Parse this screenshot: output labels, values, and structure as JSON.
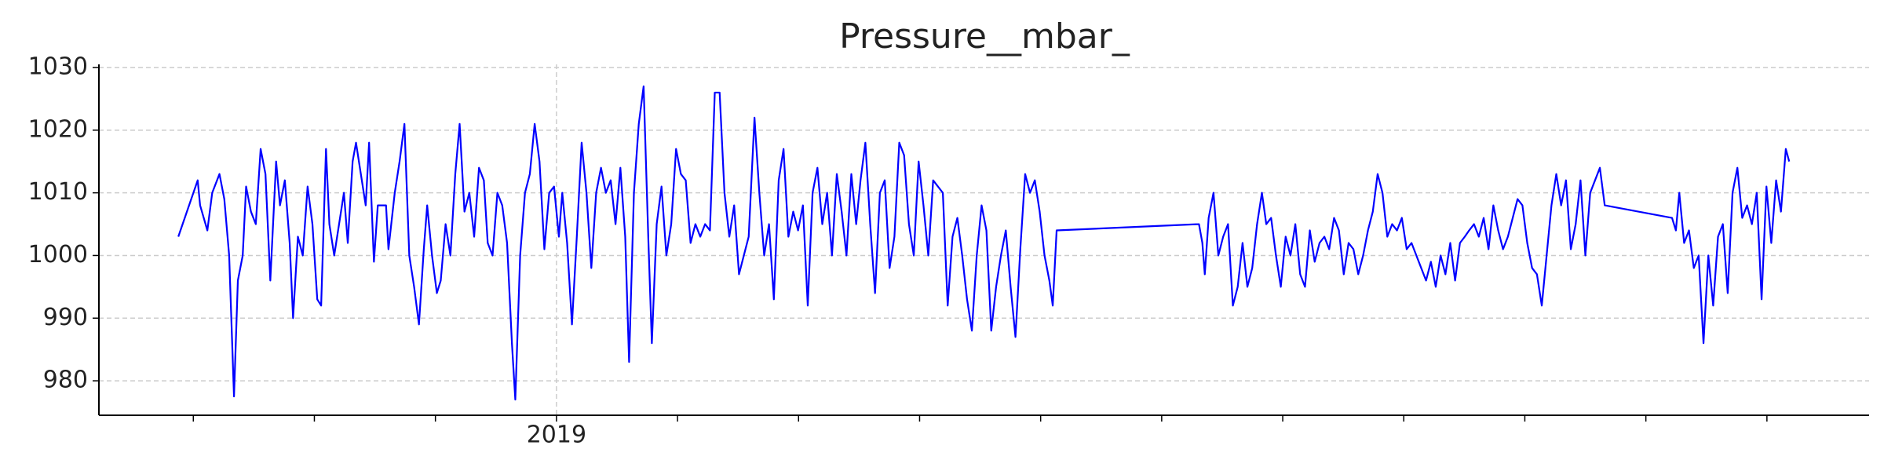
{
  "chart_data": {
    "type": "line",
    "title": "Pressure__mbar_",
    "color": "#0000ff",
    "grid": true,
    "xlim": [
      2018.055,
      2021.711
    ],
    "ylim": [
      974.5,
      1030.5
    ],
    "yticks": [
      980,
      990,
      1000,
      1010,
      1020,
      1030
    ],
    "xticks": [
      {
        "value": 2018.25,
        "label": null
      },
      {
        "value": 2018.5,
        "label": null
      },
      {
        "value": 2018.75,
        "label": null
      },
      2019,
      {
        "value": 2019.25,
        "label": null
      },
      {
        "value": 2019.5,
        "label": null
      },
      {
        "value": 2019.75,
        "label": null
      },
      {
        "value": 2020,
        "label": null
      },
      {
        "value": 2020.25,
        "label": null
      },
      {
        "value": 2020.5,
        "label": null
      },
      {
        "value": 2020.75,
        "label": null
      },
      {
        "value": 2021,
        "label": null
      },
      {
        "value": 2021.25,
        "label": null
      },
      {
        "value": 2021.5,
        "label": null
      }
    ],
    "x": [
      2018.219,
      2018.259,
      2018.264,
      2018.279,
      2018.289,
      2018.304,
      2018.314,
      2018.324,
      2018.334,
      2018.342,
      2018.352,
      2018.359,
      2018.369,
      2018.379,
      2018.389,
      2018.399,
      2018.409,
      2018.421,
      2018.429,
      2018.439,
      2018.449,
      2018.456,
      2018.466,
      2018.476,
      2018.486,
      2018.496,
      2018.506,
      2018.514,
      2018.524,
      2018.531,
      2018.541,
      2018.551,
      2018.561,
      2018.569,
      2018.579,
      2018.586,
      2018.596,
      2018.606,
      2018.613,
      2018.623,
      2018.631,
      2018.648,
      2018.653,
      2018.666,
      2018.676,
      2018.686,
      2018.696,
      2018.706,
      2018.716,
      2018.726,
      2018.733,
      2018.743,
      2018.753,
      2018.761,
      2018.771,
      2018.781,
      2018.791,
      2018.8,
      2018.81,
      2018.82,
      2018.83,
      2018.84,
      2018.85,
      2018.858,
      2018.868,
      2018.878,
      2018.888,
      2018.898,
      2018.908,
      2018.915,
      2018.925,
      2018.935,
      2018.945,
      2018.955,
      2018.965,
      2018.975,
      2018.985,
      2018.995,
      2019.005,
      2019.012,
      2019.022,
      2019.032,
      2019.042,
      2019.052,
      2019.062,
      2019.072,
      2019.082,
      2019.092,
      2019.102,
      2019.112,
      2019.122,
      2019.132,
      2019.142,
      2019.15,
      2019.16,
      2019.17,
      2019.18,
      2019.19,
      2019.197,
      2019.207,
      2019.217,
      2019.227,
      2019.237,
      2019.247,
      2019.257,
      2019.267,
      2019.277,
      2019.287,
      2019.297,
      2019.307,
      2019.317,
      2019.327,
      2019.337,
      2019.347,
      2019.357,
      2019.367,
      2019.377,
      2019.387,
      2019.397,
      2019.409,
      2019.419,
      2019.429,
      2019.439,
      2019.449,
      2019.459,
      2019.469,
      2019.479,
      2019.489,
      2019.499,
      2019.509,
      2019.519,
      2019.529,
      2019.539,
      2019.549,
      2019.559,
      2019.569,
      2019.579,
      2019.589,
      2019.599,
      2019.609,
      2019.619,
      2019.628,
      2019.638,
      2019.648,
      2019.658,
      2019.668,
      2019.678,
      2019.688,
      2019.698,
      2019.708,
      2019.718,
      2019.728,
      2019.738,
      2019.748,
      2019.758,
      2019.768,
      2019.778,
      2019.788,
      2019.798,
      2019.808,
      2019.818,
      2019.828,
      2019.838,
      2019.848,
      2019.858,
      2019.868,
      2019.878,
      2019.888,
      2019.898,
      2019.908,
      2019.918,
      2019.928,
      2019.938,
      2019.948,
      2019.958,
      2019.968,
      2019.978,
      2019.988,
      2019.998,
      2020.008,
      2020.018,
      2020.025,
      2020.033,
      2020.327,
      2020.334,
      2020.339,
      2020.347,
      2020.357,
      2020.367,
      2020.377,
      2020.387,
      2020.397,
      2020.407,
      2020.417,
      2020.427,
      2020.437,
      2020.447,
      2020.457,
      2020.466,
      2020.476,
      2020.486,
      2020.496,
      2020.506,
      2020.516,
      2020.526,
      2020.536,
      2020.546,
      2020.556,
      2020.566,
      2020.576,
      2020.586,
      2020.596,
      2020.606,
      2020.616,
      2020.626,
      2020.636,
      2020.646,
      2020.656,
      2020.666,
      2020.676,
      2020.686,
      2020.696,
      2020.706,
      2020.716,
      2020.726,
      2020.736,
      2020.746,
      2020.756,
      2020.766,
      2020.776,
      2020.786,
      2020.796,
      2020.806,
      2020.816,
      2020.826,
      2020.836,
      2020.846,
      2020.856,
      2020.866,
      2020.876,
      2020.885,
      2020.895,
      2020.905,
      2020.915,
      2020.925,
      2020.935,
      2020.945,
      2020.955,
      2020.965,
      2020.975,
      2020.985,
      2020.995,
      2021.005,
      2021.015,
      2021.025,
      2021.035,
      2021.045,
      2021.055,
      2021.065,
      2021.075,
      2021.085,
      2021.095,
      2021.105,
      2021.115,
      2021.125,
      2021.135,
      2021.145,
      2021.155,
      2021.165,
      2021.304,
      2021.312,
      2021.319,
      2021.329,
      2021.339,
      2021.349,
      2021.359,
      2021.369,
      2021.379,
      2021.389,
      2021.399,
      2021.409,
      2021.419,
      2021.429,
      2021.439,
      2021.449,
      2021.459,
      2021.469,
      2021.479,
      2021.489,
      2021.499,
      2021.509,
      2021.519,
      2021.529,
      2021.539,
      2021.546
    ],
    "values": [
      1003,
      1012,
      1008,
      1004,
      1010,
      1013,
      1009,
      1000,
      977.5,
      996,
      1000,
      1011,
      1007,
      1005,
      1017,
      1013,
      996,
      1015,
      1008,
      1012,
      1002,
      990,
      1003,
      1000,
      1011,
      1005,
      993,
      992,
      1017,
      1005,
      1000,
      1005,
      1010,
      1002,
      1015,
      1018,
      1013,
      1008,
      1018,
      999,
      1008,
      1008,
      1001,
      1010,
      1015,
      1021,
      1000,
      995,
      989,
      1001,
      1008,
      1000,
      994,
      996,
      1005,
      1000,
      1013,
      1021,
      1007,
      1010,
      1003,
      1014,
      1012,
      1002,
      1000,
      1010,
      1008,
      1002,
      986,
      977,
      1000,
      1010,
      1013,
      1021,
      1015,
      1001,
      1010,
      1011,
      1003,
      1010,
      1002,
      989,
      1003,
      1018,
      1010,
      998,
      1010,
      1014,
      1010,
      1012,
      1005,
      1014,
      1003,
      983,
      1010,
      1021,
      1027,
      1002,
      986,
      1005,
      1011,
      1000,
      1005,
      1017,
      1013,
      1012,
      1002,
      1005,
      1003,
      1005,
      1004,
      1026,
      1026,
      1010,
      1003,
      1008,
      997,
      1000,
      1003,
      1022,
      1010,
      1000,
      1005,
      993,
      1012,
      1017,
      1003,
      1007,
      1004,
      1008,
      992,
      1010,
      1014,
      1005,
      1010,
      1000,
      1013,
      1007,
      1000,
      1013,
      1005,
      1012,
      1018,
      1005,
      994,
      1010,
      1012,
      998,
      1003,
      1018,
      1016,
      1005,
      1000,
      1015,
      1008,
      1000,
      1012,
      1011,
      1010,
      992,
      1003,
      1006,
      1000,
      993,
      988,
      1000,
      1008,
      1004,
      988,
      995,
      1000,
      1004,
      995,
      987,
      1001,
      1013,
      1010,
      1012,
      1007,
      1000,
      996,
      992,
      1004,
      1005,
      1002,
      997,
      1006,
      1010,
      1000,
      1003,
      1005,
      992,
      995,
      1002,
      995,
      998,
      1005,
      1010,
      1005,
      1006,
      1000,
      995,
      1003,
      1000,
      1005,
      997,
      995,
      1004,
      999,
      1002,
      1003,
      1001,
      1006,
      1004,
      997,
      1002,
      1001,
      997,
      1000,
      1004,
      1007,
      1013,
      1010,
      1003,
      1005,
      1004,
      1006,
      1001,
      1002,
      1000,
      998,
      996,
      999,
      995,
      1000,
      997,
      1002,
      996,
      1002,
      1003,
      1004,
      1005,
      1003,
      1006,
      1001,
      1008,
      1004,
      1001,
      1003,
      1006,
      1009,
      1008,
      1002,
      998,
      997,
      992,
      1000,
      1008,
      1013,
      1008,
      1012,
      1001,
      1005,
      1012,
      1000,
      1010,
      1012,
      1014,
      1008,
      1006,
      1004,
      1010,
      1002,
      1004,
      998,
      1000,
      986,
      1000,
      992,
      1003,
      1005,
      994,
      1010,
      1014,
      1006,
      1008,
      1005,
      1010,
      993,
      1011,
      1002,
      1012,
      1007,
      1017,
      1015
    ]
  }
}
